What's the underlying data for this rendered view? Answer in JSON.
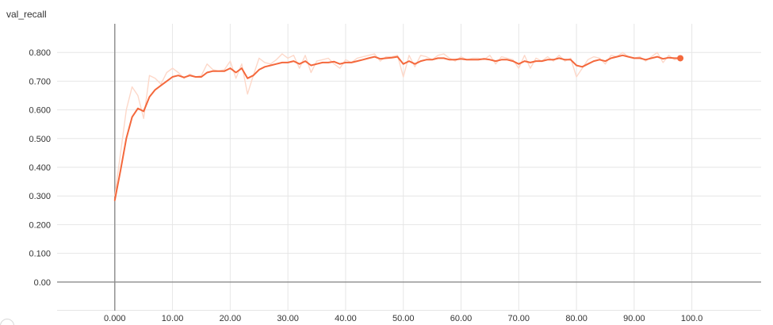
{
  "chart_data": {
    "type": "line",
    "title": "val_recall",
    "xlabel": "",
    "ylabel": "",
    "xlim": [
      -10,
      112
    ],
    "ylim": [
      -0.1,
      0.9
    ],
    "x_ticks": [
      0,
      10,
      20,
      30,
      40,
      50,
      60,
      70,
      80,
      90,
      100
    ],
    "x_tick_labels": [
      "0.000",
      "10.00",
      "20.00",
      "30.00",
      "40.00",
      "50.00",
      "60.00",
      "70.00",
      "80.00",
      "90.00",
      "100.0"
    ],
    "y_ticks": [
      0.0,
      0.1,
      0.2,
      0.3,
      0.4,
      0.5,
      0.6,
      0.7,
      0.8
    ],
    "y_tick_labels": [
      "0.00",
      "0.100",
      "0.200",
      "0.300",
      "0.400",
      "0.500",
      "0.600",
      "0.700",
      "0.800"
    ],
    "grid": true,
    "legend": "none",
    "series": [
      {
        "role": "raw",
        "color": "#fdd8c9",
        "x": [
          0,
          1,
          2,
          3,
          4,
          5,
          6,
          7,
          8,
          9,
          10,
          11,
          12,
          13,
          14,
          15,
          16,
          17,
          18,
          19,
          20,
          21,
          22,
          23,
          24,
          25,
          26,
          27,
          28,
          29,
          30,
          31,
          32,
          33,
          34,
          35,
          36,
          37,
          38,
          39,
          40,
          41,
          42,
          43,
          44,
          45,
          46,
          47,
          48,
          49,
          50,
          51,
          52,
          53,
          54,
          55,
          56,
          57,
          58,
          59,
          60,
          61,
          62,
          63,
          64,
          65,
          66,
          67,
          68,
          69,
          70,
          71,
          72,
          73,
          74,
          75,
          76,
          77,
          78,
          79,
          80,
          81,
          82,
          83,
          84,
          85,
          86,
          87,
          88,
          89,
          90,
          91,
          92,
          93,
          94,
          95,
          96,
          97,
          98
        ],
        "y": [
          0.3,
          0.45,
          0.6,
          0.68,
          0.65,
          0.57,
          0.72,
          0.71,
          0.69,
          0.73,
          0.745,
          0.73,
          0.71,
          0.725,
          0.715,
          0.72,
          0.76,
          0.74,
          0.735,
          0.74,
          0.77,
          0.71,
          0.76,
          0.655,
          0.72,
          0.78,
          0.765,
          0.76,
          0.775,
          0.795,
          0.78,
          0.79,
          0.745,
          0.79,
          0.73,
          0.77,
          0.775,
          0.78,
          0.76,
          0.745,
          0.775,
          0.765,
          0.78,
          0.785,
          0.79,
          0.795,
          0.77,
          0.785,
          0.785,
          0.79,
          0.715,
          0.79,
          0.75,
          0.79,
          0.785,
          0.775,
          0.79,
          0.795,
          0.78,
          0.77,
          0.785,
          0.775,
          0.78,
          0.78,
          0.775,
          0.79,
          0.76,
          0.785,
          0.78,
          0.775,
          0.745,
          0.79,
          0.745,
          0.78,
          0.77,
          0.785,
          0.77,
          0.79,
          0.77,
          0.78,
          0.715,
          0.745,
          0.775,
          0.785,
          0.78,
          0.76,
          0.79,
          0.785,
          0.8,
          0.785,
          0.78,
          0.785,
          0.77,
          0.785,
          0.8,
          0.765,
          0.79,
          0.775,
          0.78
        ]
      },
      {
        "role": "smoothed",
        "color": "#f4683c",
        "x": [
          0,
          1,
          2,
          3,
          4,
          5,
          6,
          7,
          8,
          9,
          10,
          11,
          12,
          13,
          14,
          15,
          16,
          17,
          18,
          19,
          20,
          21,
          22,
          23,
          24,
          25,
          26,
          27,
          28,
          29,
          30,
          31,
          32,
          33,
          34,
          35,
          36,
          37,
          38,
          39,
          40,
          41,
          42,
          43,
          44,
          45,
          46,
          47,
          48,
          49,
          50,
          51,
          52,
          53,
          54,
          55,
          56,
          57,
          58,
          59,
          60,
          61,
          62,
          63,
          64,
          65,
          66,
          67,
          68,
          69,
          70,
          71,
          72,
          73,
          74,
          75,
          76,
          77,
          78,
          79,
          80,
          81,
          82,
          83,
          84,
          85,
          86,
          87,
          88,
          89,
          90,
          91,
          92,
          93,
          94,
          95,
          96,
          97,
          98
        ],
        "y": [
          0.285,
          0.39,
          0.5,
          0.575,
          0.605,
          0.595,
          0.645,
          0.67,
          0.685,
          0.7,
          0.715,
          0.72,
          0.713,
          0.72,
          0.715,
          0.715,
          0.73,
          0.735,
          0.735,
          0.735,
          0.745,
          0.73,
          0.745,
          0.71,
          0.72,
          0.74,
          0.75,
          0.755,
          0.76,
          0.765,
          0.765,
          0.77,
          0.76,
          0.77,
          0.755,
          0.76,
          0.765,
          0.765,
          0.768,
          0.76,
          0.765,
          0.765,
          0.77,
          0.775,
          0.78,
          0.785,
          0.778,
          0.78,
          0.782,
          0.785,
          0.76,
          0.77,
          0.76,
          0.77,
          0.775,
          0.775,
          0.78,
          0.78,
          0.775,
          0.775,
          0.778,
          0.775,
          0.775,
          0.775,
          0.778,
          0.775,
          0.77,
          0.775,
          0.775,
          0.77,
          0.76,
          0.77,
          0.765,
          0.77,
          0.77,
          0.775,
          0.775,
          0.78,
          0.775,
          0.775,
          0.755,
          0.75,
          0.76,
          0.77,
          0.775,
          0.77,
          0.78,
          0.785,
          0.79,
          0.785,
          0.78,
          0.78,
          0.775,
          0.78,
          0.785,
          0.778,
          0.782,
          0.78,
          0.78
        ]
      }
    ]
  }
}
